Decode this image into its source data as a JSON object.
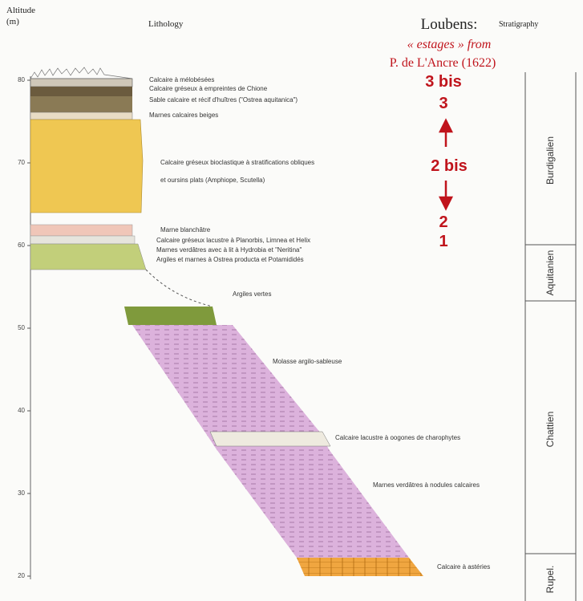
{
  "header": {
    "altitude": "Altitude",
    "altitude_unit": "(m)",
    "lithology": "Lithology",
    "loubens": "Loubens:",
    "estages": "« estages » from",
    "source": "P. de L'Ancre (1622)",
    "stratigraphy": "Stratigraphy"
  },
  "altitude_ticks": [
    80,
    70,
    60,
    50,
    40,
    30,
    20
  ],
  "estage_labels": [
    "3 bis",
    "3",
    "2 bis",
    "2",
    "1"
  ],
  "layers": [
    "Calcaire à mélobésées",
    "Calcaire gréseux à empreintes de Chione",
    "Sable calcaire et récif d'huîtres (\"Ostrea aquitanica\")",
    "Marnes calcaires beiges",
    "Calcaire gréseux bioclastique à stratifications obliques",
    "et oursins plats (Amphiope, Scutella)",
    "Marne blanchâtre",
    "Calcaire gréseux lacustre à Planorbis, Limnea et Helix",
    "Marnes verdâtres avec à lit à Hydrobia et \"Neritina\"",
    "Argiles et marnes à Ostrea producta et Potamididés",
    "Argiles vertes",
    "Molasse argilo-sableuse",
    "Calcaire lacustre à oogones de charophytes",
    "Marnes verdâtres à nodules calcaires",
    "Calcaire à astéries"
  ],
  "stages": [
    "Burdigalien",
    "Aquitanien",
    "Chattien",
    "Rupel."
  ]
}
